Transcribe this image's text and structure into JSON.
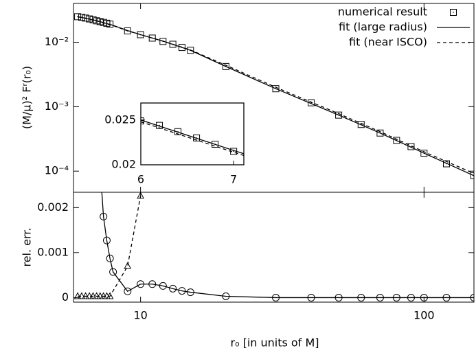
{
  "chart_data": [
    {
      "type": "line",
      "xlabel": "r₀ [in units of M]",
      "ylabel": "(M/μ)² Fʳ(r₀)",
      "xlog": true,
      "ylog": true,
      "legend": "upper right",
      "xlim": [
        5.8,
        150
      ],
      "ylim": [
        4.7e-05,
        0.04
      ],
      "yticks": [
        {
          "value": 0.01,
          "label": "10⁻²"
        },
        {
          "value": 0.001,
          "label": "10⁻³"
        },
        {
          "value": 0.0001,
          "label": "10⁻⁴"
        }
      ],
      "series": [
        {
          "name": "numerical result",
          "color": "#000000",
          "marker": "square",
          "line": "none",
          "x": [
            6,
            6.2,
            6.4,
            6.6,
            6.8,
            7,
            7.2,
            7.4,
            7.6,
            7.8,
            9,
            10,
            11,
            12,
            13,
            14,
            15,
            20,
            30,
            40,
            50,
            60,
            70,
            80,
            90,
            100,
            120,
            150
          ],
          "values": [
            0.0249,
            0.0244,
            0.0237,
            0.023,
            0.0223,
            0.0215,
            0.0209,
            0.0203,
            0.0197,
            0.0191,
            0.015,
            0.0131,
            0.0116,
            0.0103,
            0.0093,
            0.0083,
            0.0075,
            0.0042,
            0.0019,
            0.00115,
            0.00074,
            0.00053,
            0.00039,
            0.0003,
            0.00024,
            0.00019,
            0.00013,
            8.5e-05
          ]
        },
        {
          "name": "fit (large radius)",
          "color": "#000000",
          "marker": "none",
          "line": "solid",
          "x": [
            6,
            7,
            8,
            9,
            10,
            12,
            15,
            20,
            30,
            50,
            70,
            100,
            150
          ],
          "values": [
            0.025,
            0.0216,
            0.0183,
            0.0152,
            0.0131,
            0.0104,
            0.0075,
            0.0042,
            0.0019,
            0.00074,
            0.00039,
            0.00019,
            8.5e-05
          ]
        },
        {
          "name": "fit (near ISCO)",
          "color": "#000000",
          "marker": "none",
          "line": "dashed",
          "x": [
            6,
            7,
            8,
            9,
            10,
            12,
            15,
            20,
            30,
            50,
            70,
            100,
            150
          ],
          "values": [
            0.0248,
            0.0214,
            0.0181,
            0.015,
            0.0131,
            0.0104,
            0.0076,
            0.0044,
            0.002,
            0.00078,
            0.00041,
            0.0002,
            9.2e-05
          ]
        }
      ]
    },
    {
      "type": "inset",
      "xlim": [
        6,
        7.11
      ],
      "ylim": [
        0.02,
        0.0269
      ],
      "xticks": [
        6,
        7
      ],
      "yticks": [
        0.025,
        0.02
      ]
    },
    {
      "type": "line",
      "ylabel": "rel. err.",
      "xlog": true,
      "xlim": [
        5.8,
        150
      ],
      "ylim": [
        -0.0001,
        0.00234
      ],
      "xticks": [
        10,
        100
      ],
      "yticks": [
        0,
        0.001,
        0.002
      ],
      "series": [
        {
          "color": "#000000",
          "marker": "circle",
          "line": "solid",
          "x": [
            7.2,
            7.4,
            7.6,
            7.8,
            8,
            9,
            10,
            11,
            12,
            13,
            14,
            15,
            20,
            30,
            40,
            50,
            60,
            70,
            80,
            90,
            100,
            120,
            150
          ],
          "values": [
            0.0029,
            0.0018,
            0.00127,
            0.00087,
            0.00057,
            0.00014,
            0.0003,
            0.0003,
            0.00026,
            0.0002,
            0.00015,
            0.00012,
            3e-05,
            0,
            0,
            0,
            0,
            0,
            0,
            0,
            0,
            0,
            0
          ]
        },
        {
          "color": "#000000",
          "marker": "triangle",
          "line": "dashed",
          "x": [
            6,
            6.2,
            6.4,
            6.6,
            6.8,
            7,
            7.2,
            7.4,
            7.6,
            7.8,
            9,
            10
          ],
          "values": [
            3e-05,
            3e-05,
            3e-05,
            3e-05,
            3e-05,
            3e-05,
            3e-05,
            3e-05,
            3e-05,
            3e-05,
            0.0007,
            0.00226
          ]
        }
      ]
    }
  ]
}
